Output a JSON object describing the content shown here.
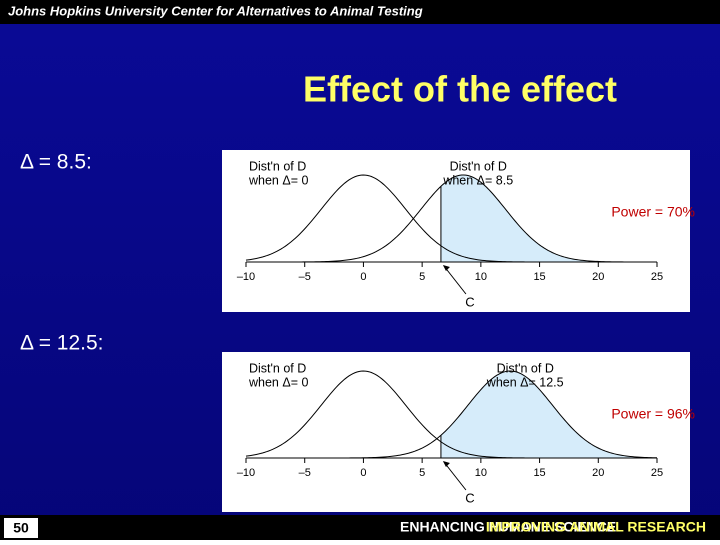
{
  "header": {
    "text": "Johns Hopkins University Center for Alternatives to Animal Testing"
  },
  "title": "Effect of the effect",
  "page_number": "50",
  "footer": {
    "left": "ENHANCING HUMANE SCIENCE",
    "right": "IMPROVING ANIMAL RESEARCH"
  },
  "chart_data": [
    {
      "type": "normal-density",
      "subtitle": "Δ = 8.5:",
      "null_label": [
        "Dist'n of D",
        "when Δ= 0"
      ],
      "alt_label": [
        "Dist'n of D",
        "when Δ= 8.5"
      ],
      "power_label": "Power = 70%",
      "cutoff_label": "C",
      "means": [
        0,
        8.5
      ],
      "sd": 3.6,
      "cutoff": 6.6,
      "color": "#d6ecfa",
      "xlim": [
        -10,
        25
      ],
      "xticks": [
        {
          "value": -10,
          "label": "–10"
        },
        {
          "value": -5,
          "label": "–5"
        },
        0,
        5,
        10,
        15,
        20,
        25
      ]
    },
    {
      "type": "normal-density",
      "subtitle": "Δ = 12.5:",
      "null_label": [
        "Dist'n of D",
        "when Δ= 0"
      ],
      "alt_label": [
        "Dist'n of D",
        "when Δ= 12.5"
      ],
      "power_label": "Power = 96%",
      "cutoff_label": "C",
      "means": [
        0,
        12.5
      ],
      "sd": 3.6,
      "cutoff": 6.6,
      "color": "#d6ecfa",
      "xlim": [
        -10,
        25
      ],
      "xticks": [
        {
          "value": -10,
          "label": "–10"
        },
        {
          "value": -5,
          "label": "–5"
        },
        0,
        5,
        10,
        15,
        20,
        25
      ]
    }
  ]
}
